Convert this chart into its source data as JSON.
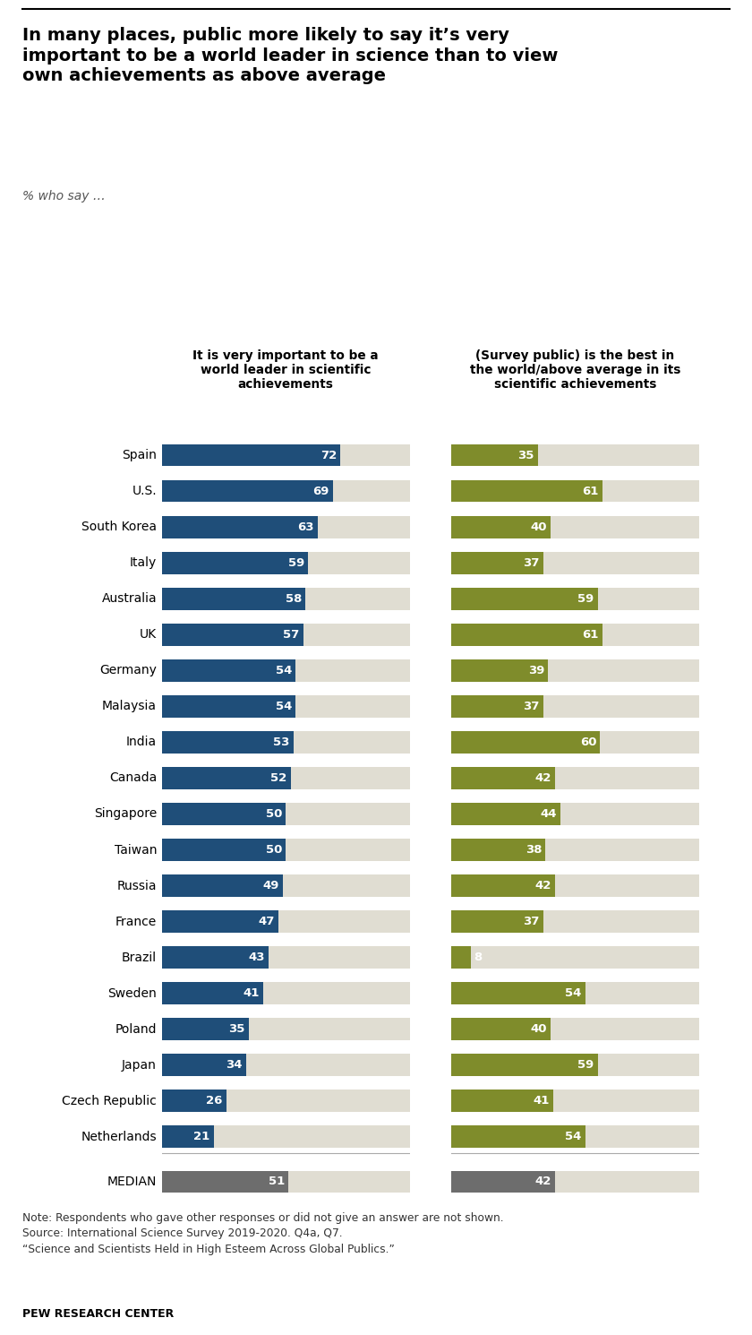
{
  "title": "In many places, public more likely to say it’s very\nimportant to be a world leader in science than to view\nown achievements as above average",
  "subtitle": "% who say …",
  "col1_header": "It is very important to be a\nworld leader in scientific\nachievements",
  "col2_header": "(Survey public) is the best in\nthe world/above average in its\nscientific achievements",
  "countries": [
    "Spain",
    "U.S.",
    "South Korea",
    "Italy",
    "Australia",
    "UK",
    "Germany",
    "Malaysia",
    "India",
    "Canada",
    "Singapore",
    "Taiwan",
    "Russia",
    "France",
    "Brazil",
    "Sweden",
    "Poland",
    "Japan",
    "Czech Republic",
    "Netherlands",
    "MEDIAN"
  ],
  "col1_values": [
    72,
    69,
    63,
    59,
    58,
    57,
    54,
    54,
    53,
    52,
    50,
    50,
    49,
    47,
    43,
    41,
    35,
    34,
    26,
    21,
    51
  ],
  "col2_values": [
    35,
    61,
    40,
    37,
    59,
    61,
    39,
    37,
    60,
    42,
    44,
    38,
    42,
    37,
    8,
    54,
    40,
    59,
    41,
    54,
    42
  ],
  "bar1_color": "#1f4e79",
  "bar2_color": "#7f8c2b",
  "median_color": "#6d6d6d",
  "bg_color": "#e0ddd2",
  "note": "Note: Respondents who gave other responses or did not give an answer are not shown.\nSource: International Science Survey 2019-2020. Q4a, Q7.\n“Science and Scientists Held in High Esteem Across Global Publics.”",
  "source_bold": "PEW RESEARCH CENTER",
  "fig_width": 8.4,
  "fig_height": 14.9
}
